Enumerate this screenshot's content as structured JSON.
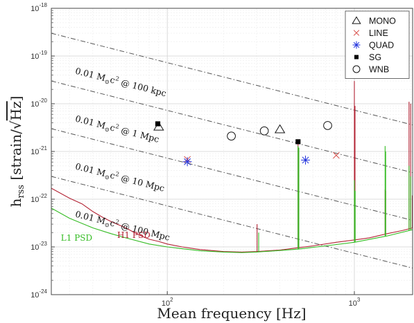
{
  "chart_data": {
    "type": "scatter",
    "xlabel": "Mean frequency [Hz]",
    "ylabel": "h_rss [strain/√Hz]",
    "ylabel_parts": {
      "main": "h",
      "sub": "rss",
      "rest": " [strain/",
      "sqrt": "Hz",
      "close": "]"
    },
    "xlabel_parts": {
      "main": "Mean frequency ",
      "bracket": "[Hz]"
    },
    "xscale": "log",
    "yscale": "log",
    "xlim": [
      24,
      2048
    ],
    "ylim": [
      1e-24,
      1e-18
    ],
    "grid": true,
    "legend_position": "top-right",
    "x_ticks": [
      {
        "value": 100,
        "base": "10",
        "exp": "2"
      },
      {
        "value": 1000,
        "base": "10",
        "exp": "3"
      }
    ],
    "y_ticks": [
      {
        "value": 1e-18,
        "base": "10",
        "exp": "-18"
      },
      {
        "value": 1e-19,
        "base": "10",
        "exp": "-19"
      },
      {
        "value": 1e-20,
        "base": "10",
        "exp": "-20"
      },
      {
        "value": 1e-21,
        "base": "10",
        "exp": "-21"
      },
      {
        "value": 1e-22,
        "base": "10",
        "exp": "-22"
      },
      {
        "value": 1e-23,
        "base": "10",
        "exp": "-23"
      },
      {
        "value": 1e-24,
        "base": "10",
        "exp": "-24"
      }
    ],
    "reference_lines": [
      {
        "id": "100kpc",
        "prefix": "0.01 M",
        "sub": "⊙",
        "mid": "c",
        "sup": "2",
        "suffix": " @ 100 kpc",
        "x": [
          24,
          2048
        ],
        "y": [
          3e-19,
          3.6e-21
        ],
        "label_at": [
          32,
          4.3e-20
        ],
        "color": "#555555"
      },
      {
        "id": "1mpc",
        "prefix": "0.01 M",
        "sub": "⊙",
        "mid": "c",
        "sup": "2",
        "suffix": " @ 1 Mpc",
        "x": [
          24,
          2048
        ],
        "y": [
          3e-20,
          3.6e-22
        ],
        "label_at": [
          32,
          4.3e-21
        ],
        "color": "#555555"
      },
      {
        "id": "10mpc",
        "prefix": "0.01 M",
        "sub": "⊙",
        "mid": "c",
        "sup": "2",
        "suffix": " @ 10 Mpc",
        "x": [
          24,
          2048
        ],
        "y": [
          3e-21,
          3.6e-23
        ],
        "label_at": [
          32,
          4.3e-22
        ],
        "color": "#555555"
      },
      {
        "id": "100mpc",
        "prefix": "0.01 M",
        "sub": "⊙",
        "mid": "c",
        "sup": "2",
        "suffix": " @ 100 Mpc",
        "x": [
          24,
          2048
        ],
        "y": [
          3e-22,
          3.6e-24
        ],
        "label_at": [
          32,
          4.3e-23
        ],
        "color": "#555555"
      }
    ],
    "series": [
      {
        "name": "MONO",
        "marker": "triangle",
        "color": "#111111",
        "points": [
          [
            90,
            3.3e-21
          ],
          [
            400,
            2.9e-21
          ]
        ]
      },
      {
        "name": "LINE",
        "marker": "x",
        "color": "#d9534f",
        "points": [
          [
            128,
            6.8e-22
          ],
          [
            800,
            8.3e-22
          ]
        ]
      },
      {
        "name": "QUAD",
        "marker": "asterisk",
        "color": "#2233dd",
        "points": [
          [
            128,
            6.1e-22
          ],
          [
            548,
            6.6e-22
          ]
        ]
      },
      {
        "name": "SG",
        "marker": "square",
        "color": "#000000",
        "points": [
          [
            89,
            3.8e-21
          ],
          [
            500,
            1.6e-21
          ]
        ]
      },
      {
        "name": "WNB",
        "marker": "circle",
        "color": "#111111",
        "points": [
          [
            220,
            2.1e-21
          ],
          [
            330,
            2.7e-21
          ],
          [
            720,
            3.5e-21
          ]
        ]
      }
    ],
    "psd_curves": [
      {
        "name": "H1 PSD",
        "label": "H1 PSD",
        "label_at": [
          54,
          1.55e-23
        ],
        "color": "#b22233",
        "points": [
          [
            24,
            1.7e-22
          ],
          [
            30,
            1.05e-22
          ],
          [
            35,
            8e-23
          ],
          [
            40,
            5.5e-23
          ],
          [
            45,
            4.2e-23
          ],
          [
            50,
            3.4e-23
          ],
          [
            55,
            2.9e-23
          ],
          [
            60,
            2.5e-23
          ],
          [
            70,
            1.8e-23
          ],
          [
            80,
            1.45e-23
          ],
          [
            90,
            1.3e-23
          ],
          [
            100,
            1.15e-23
          ],
          [
            120,
            1e-23
          ],
          [
            150,
            8.8e-24
          ],
          [
            200,
            8e-24
          ],
          [
            250,
            7.8e-24
          ],
          [
            300,
            8e-24
          ],
          [
            400,
            8.6e-24
          ],
          [
            500,
            9.6e-24
          ],
          [
            600,
            1.05e-23
          ],
          [
            800,
            1.25e-23
          ],
          [
            1000,
            1.4e-23
          ],
          [
            1200,
            1.55e-23
          ],
          [
            1500,
            1.9e-23
          ],
          [
            1800,
            2.2e-23
          ],
          [
            2048,
            2.5e-23
          ]
        ],
        "spikes": [
          {
            "f": 302,
            "peak": 3e-23
          },
          {
            "f": 500,
            "peak": 1.6e-21
          },
          {
            "f": 505,
            "peak": 1.2e-21
          },
          {
            "f": 1000,
            "peak": 3e-20
          },
          {
            "f": 1008,
            "peak": 9e-21
          },
          {
            "f": 1460,
            "peak": 1.6e-22
          },
          {
            "f": 1470,
            "peak": 1.5e-22
          },
          {
            "f": 1960,
            "peak": 1.1e-20
          },
          {
            "f": 2000,
            "peak": 1e-20
          },
          {
            "f": 2040,
            "peak": 1.2e-22
          }
        ]
      },
      {
        "name": "L1 PSD",
        "label": "L1 PSD",
        "label_at": [
          27,
          1.35e-23
        ],
        "color": "#33bb22",
        "points": [
          [
            24,
            6.5e-23
          ],
          [
            30,
            4e-23
          ],
          [
            40,
            2.5e-23
          ],
          [
            50,
            1.9e-23
          ],
          [
            60,
            1.55e-23
          ],
          [
            80,
            1.15e-23
          ],
          [
            100,
            1e-23
          ],
          [
            150,
            8.3e-24
          ],
          [
            200,
            7.8e-24
          ],
          [
            250,
            7.6e-24
          ],
          [
            300,
            7.8e-24
          ],
          [
            400,
            8.4e-24
          ],
          [
            500,
            9e-24
          ],
          [
            700,
            1.05e-23
          ],
          [
            1000,
            1.25e-23
          ],
          [
            1500,
            1.7e-23
          ],
          [
            2048,
            2.3e-23
          ]
        ],
        "spikes": [
          {
            "f": 308,
            "peak": 2e-23
          },
          {
            "f": 500,
            "peak": 1.3e-21
          },
          {
            "f": 505,
            "peak": 1.2e-21
          },
          {
            "f": 1000,
            "peak": 2.5e-22
          },
          {
            "f": 1010,
            "peak": 1.5e-22
          },
          {
            "f": 1460,
            "peak": 1.3e-21
          },
          {
            "f": 1470,
            "peak": 1e-21
          },
          {
            "f": 1960,
            "peak": 5e-22
          },
          {
            "f": 2000,
            "peak": 3e-22
          }
        ]
      }
    ]
  }
}
